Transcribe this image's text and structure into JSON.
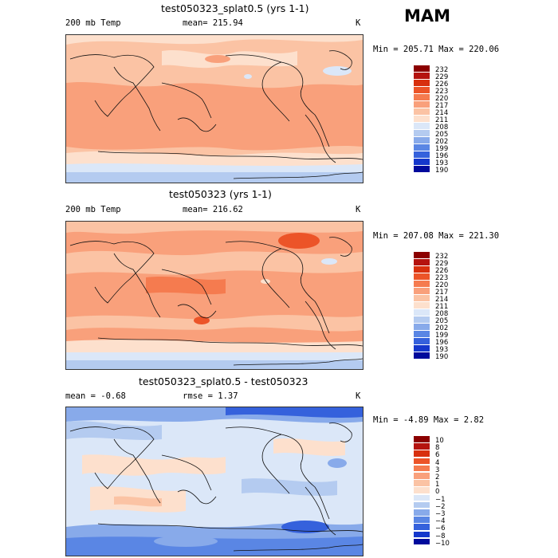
{
  "figure": {
    "season": "MAM",
    "units": "K",
    "panels": [
      {
        "title": "test050323_splat0.5 (yrs 1-1)",
        "variable": "200 mb Temp",
        "mean_text": "mean= 215.94",
        "minmax_text": "Min = 205.71 Max = 220.06"
      },
      {
        "title": "test050323 (yrs 1-1)",
        "variable": "200 mb Temp",
        "mean_text": "mean= 216.62",
        "minmax_text": "Min = 207.08 Max = 221.30"
      },
      {
        "title": "test050323_splat0.5 - test050323",
        "variable": "mean =   -0.68",
        "mean_text": "rmse =    1.37",
        "minmax_text": "Min =  -4.89 Max =   2.82"
      }
    ],
    "colorbar_abs": [
      "232",
      "229",
      "226",
      "223",
      "220",
      "217",
      "214",
      "211",
      "208",
      "205",
      "202",
      "199",
      "196",
      "193",
      "190"
    ],
    "colorbar_diff": [
      "10",
      "8",
      "6",
      "4",
      "3",
      "2",
      "1",
      "0",
      "−1",
      "−2",
      "−3",
      "−4",
      "−6",
      "−8",
      "−10"
    ],
    "colors": [
      "#8b0000",
      "#b5130f",
      "#d8300e",
      "#ec5428",
      "#f57b4f",
      "#f9a07b",
      "#fbc3a4",
      "#fde0cd",
      "#dbe7f8",
      "#b4cbf0",
      "#88aaea",
      "#5a86e4",
      "#3561dc",
      "#1537cc",
      "#000a9c"
    ]
  }
}
